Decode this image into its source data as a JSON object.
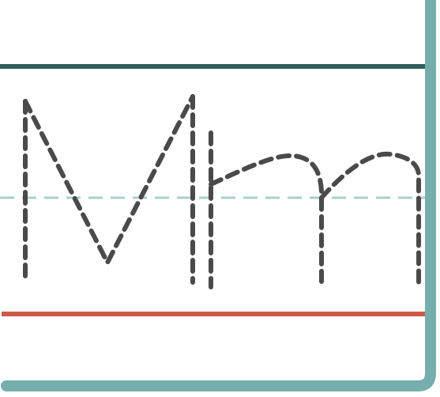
{
  "worksheet": {
    "letters_traced": "Mm",
    "colors": {
      "background": "#ffffff",
      "card_border": "#76aeae",
      "top_line": "#2f5f5e",
      "midline": "#a9cfcc",
      "baseline": "#cf5a47",
      "trace_stroke": "#4a4a4a"
    }
  }
}
